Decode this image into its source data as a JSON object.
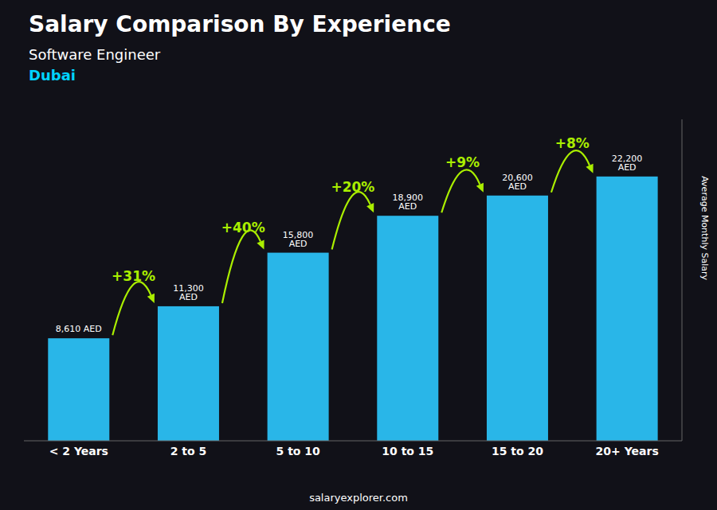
{
  "chart_data": {
    "type": "bar",
    "title": "Salary Comparison By Experience",
    "subtitle": "Software Engineer",
    "location": "Dubai",
    "location_color": "#00d4ff",
    "background": "#111118",
    "categories": [
      "< 2 Years",
      "2 to 5",
      "5 to 10",
      "10 to 15",
      "15 to 20",
      "20+ Years"
    ],
    "values": [
      8610,
      11300,
      15800,
      18900,
      20600,
      22200
    ],
    "value_labels": [
      "8,610 AED",
      "11,300 AED",
      "15,800 AED",
      "18,900 AED",
      "20,600 AED",
      "22,200 AED"
    ],
    "data_labels": true,
    "color": "#29b6e8",
    "ylabel": "Average Monthly Salary",
    "ylim": [
      0,
      27000
    ],
    "tick_labels": "x",
    "grid": false,
    "annotations": [
      {
        "text": "+31%",
        "from": "< 2 Years",
        "to": "2 to 5",
        "color": "#aaee00"
      },
      {
        "text": "+40%",
        "from": "2 to 5",
        "to": "5 to 10",
        "color": "#aaee00"
      },
      {
        "text": "+20%",
        "from": "5 to 10",
        "to": "10 to 15",
        "color": "#aaee00"
      },
      {
        "text": "+9%",
        "from": "10 to 15",
        "to": "15 to 20",
        "color": "#aaee00"
      },
      {
        "text": "+8%",
        "from": "15 to 20",
        "to": "20+ Years",
        "color": "#aaee00"
      }
    ],
    "footer": "salaryexplorer.com"
  }
}
